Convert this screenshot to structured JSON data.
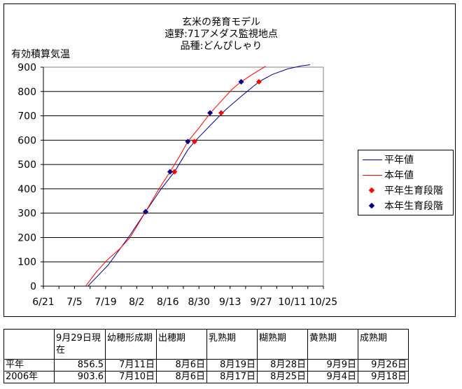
{
  "chart": {
    "title_lines": [
      "玄米の発育モデル",
      "遠野:71アメダス監視地点",
      "品種:どんぴしゃり"
    ],
    "ylabel": "有効積算気温"
  },
  "legend": {
    "items": [
      {
        "label": "平年値",
        "kind": "line",
        "color": "#00008b"
      },
      {
        "label": "本年値",
        "kind": "line",
        "color": "#ff0000"
      },
      {
        "label": "平年生育段階",
        "kind": "marker",
        "color": "#ff0000"
      },
      {
        "label": "本年生育段階",
        "kind": "marker",
        "color": "#00008b"
      }
    ]
  },
  "chart_data": {
    "type": "line",
    "title": "玄米の発育モデル / 遠野:71アメダス監視地点 / 品種:どんぴしゃり",
    "xlabel": "",
    "ylabel": "有効積算気温",
    "x_ticks": [
      "6/21",
      "7/5",
      "7/19",
      "8/2",
      "8/16",
      "8/30",
      "9/13",
      "9/27",
      "10/11",
      "10/25"
    ],
    "x_range": [
      "6/21",
      "10/25"
    ],
    "ylim": [
      0,
      900
    ],
    "y_ticks": [
      0,
      100,
      200,
      300,
      400,
      500,
      600,
      700,
      800,
      900
    ],
    "grid": "horizontal",
    "legend_position": "right",
    "series": [
      {
        "name": "平年値",
        "kind": "line",
        "color": "#00008b",
        "points": [
          [
            "7/11",
            0
          ],
          [
            "7/20",
            85
          ],
          [
            "7/30",
            210
          ],
          [
            "8/6",
            306
          ],
          [
            "8/13",
            400
          ],
          [
            "8/19",
            470
          ],
          [
            "8/25",
            560
          ],
          [
            "8/28",
            594
          ],
          [
            "9/4",
            660
          ],
          [
            "9/11",
            725
          ],
          [
            "9/18",
            780
          ],
          [
            "9/26",
            840
          ],
          [
            "10/2",
            870
          ],
          [
            "10/9",
            893
          ],
          [
            "10/15",
            905
          ],
          [
            "10/19",
            910
          ]
        ]
      },
      {
        "name": "本年値",
        "kind": "line",
        "color": "#ff0000",
        "points": [
          [
            "7/10",
            0
          ],
          [
            "7/15",
            60
          ],
          [
            "7/20",
            110
          ],
          [
            "7/25",
            150
          ],
          [
            "7/30",
            200
          ],
          [
            "8/6",
            306
          ],
          [
            "8/12",
            400
          ],
          [
            "8/17",
            470
          ],
          [
            "8/21",
            530
          ],
          [
            "8/25",
            594
          ],
          [
            "8/30",
            650
          ],
          [
            "9/4",
            710
          ],
          [
            "9/10",
            770
          ],
          [
            "9/14",
            810
          ],
          [
            "9/18",
            840
          ],
          [
            "9/23",
            870
          ],
          [
            "9/29",
            903.6
          ]
        ]
      },
      {
        "name": "平年生育段階",
        "kind": "marker",
        "color": "#ff0000",
        "points": [
          [
            "8/6",
            306
          ],
          [
            "8/19",
            470
          ],
          [
            "8/28",
            594
          ],
          [
            "9/9",
            712
          ],
          [
            "9/26",
            840
          ]
        ]
      },
      {
        "name": "本年生育段階",
        "kind": "marker",
        "color": "#00008b",
        "points": [
          [
            "8/6",
            306
          ],
          [
            "8/17",
            470
          ],
          [
            "8/25",
            594
          ],
          [
            "9/4",
            712
          ],
          [
            "9/18",
            840
          ]
        ]
      }
    ]
  },
  "table": {
    "headers": [
      "",
      "9月29日現在",
      "幼穂形成期",
      "出穂期",
      "乳熟期",
      "糊熟期",
      "黄熟期",
      "成熟期"
    ],
    "rows": [
      [
        "平年",
        "856.5",
        "7月11日",
        "8月6日",
        "8月19日",
        "8月28日",
        "9月9日",
        "9月26日"
      ],
      [
        "2006年",
        "903.6",
        "7月10日",
        "8月6日",
        "8月17日",
        "8月25日",
        "9月4日",
        "9月18日"
      ]
    ]
  }
}
